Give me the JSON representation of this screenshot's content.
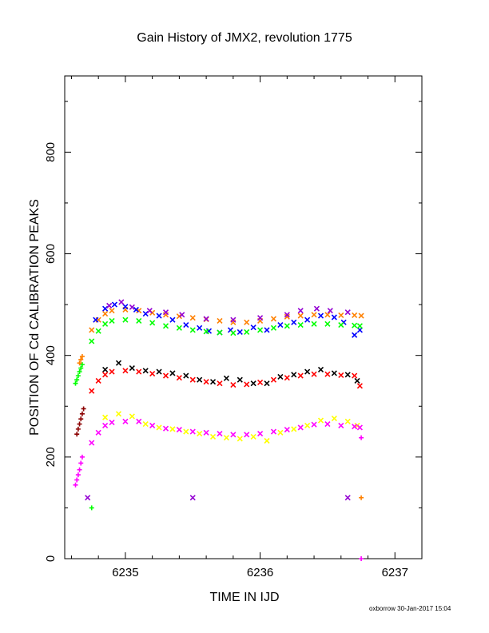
{
  "chart_data": {
    "type": "scatter",
    "title": "Gain History of JMX2, revolution 1775",
    "xlabel": "TIME IN IJD",
    "ylabel": "POSITION OF Cd CALIBRATION PEAKS",
    "xlim": [
      6234.55,
      6237.2
    ],
    "ylim": [
      0,
      950
    ],
    "xticks": [
      6235,
      6236,
      6237
    ],
    "yticks": [
      0,
      200,
      400,
      600,
      800
    ],
    "grid": false,
    "legend": "none",
    "series": [
      {
        "color": "#ff8000",
        "marker": "x",
        "points": [
          [
            6234.75,
            450
          ],
          [
            6234.8,
            470
          ],
          [
            6234.85,
            482
          ],
          [
            6234.9,
            488
          ],
          [
            6235.0,
            490
          ],
          [
            6235.1,
            488
          ],
          [
            6235.2,
            484
          ],
          [
            6235.3,
            480
          ],
          [
            6235.4,
            477
          ],
          [
            6235.5,
            474
          ],
          [
            6235.6,
            471
          ],
          [
            6235.7,
            468
          ],
          [
            6235.8,
            465
          ],
          [
            6235.9,
            465
          ],
          [
            6236.0,
            468
          ],
          [
            6236.1,
            472
          ],
          [
            6236.2,
            476
          ],
          [
            6236.3,
            478
          ],
          [
            6236.4,
            480
          ],
          [
            6236.5,
            480
          ],
          [
            6236.6,
            479
          ],
          [
            6236.7,
            479
          ],
          [
            6236.75,
            478
          ]
        ]
      },
      {
        "color": "#0000ff",
        "marker": "x",
        "points": [
          [
            6234.78,
            470
          ],
          [
            6234.85,
            492
          ],
          [
            6234.92,
            500
          ],
          [
            6235.0,
            496
          ],
          [
            6235.08,
            490
          ],
          [
            6235.15,
            482
          ],
          [
            6235.25,
            478
          ],
          [
            6235.35,
            470
          ],
          [
            6235.45,
            460
          ],
          [
            6235.55,
            454
          ],
          [
            6235.62,
            448
          ],
          [
            6235.7,
            445
          ],
          [
            6235.78,
            450
          ],
          [
            6235.85,
            446
          ],
          [
            6235.95,
            455
          ],
          [
            6236.05,
            450
          ],
          [
            6236.15,
            460
          ],
          [
            6236.25,
            465
          ],
          [
            6236.35,
            470
          ],
          [
            6236.45,
            478
          ],
          [
            6236.55,
            475
          ],
          [
            6236.62,
            465
          ],
          [
            6236.7,
            440
          ],
          [
            6236.74,
            450
          ]
        ]
      },
      {
        "color": "#9400d3",
        "marker": "x",
        "points": [
          [
            6234.88,
            498
          ],
          [
            6234.97,
            505
          ],
          [
            6235.05,
            495
          ],
          [
            6235.18,
            488
          ],
          [
            6235.3,
            485
          ],
          [
            6235.42,
            480
          ],
          [
            6235.6,
            472
          ],
          [
            6235.8,
            470
          ],
          [
            6236.0,
            474
          ],
          [
            6236.2,
            480
          ],
          [
            6236.3,
            488
          ],
          [
            6236.42,
            492
          ],
          [
            6236.52,
            488
          ],
          [
            6236.65,
            485
          ],
          [
            6234.72,
            120
          ],
          [
            6235.5,
            120
          ],
          [
            6236.65,
            120
          ]
        ]
      },
      {
        "color": "#00ff00",
        "marker": "x",
        "points": [
          [
            6234.75,
            428
          ],
          [
            6234.8,
            448
          ],
          [
            6234.85,
            462
          ],
          [
            6234.9,
            468
          ],
          [
            6235.0,
            470
          ],
          [
            6235.1,
            468
          ],
          [
            6235.2,
            464
          ],
          [
            6235.3,
            458
          ],
          [
            6235.4,
            454
          ],
          [
            6235.5,
            450
          ],
          [
            6235.6,
            447
          ],
          [
            6235.7,
            445
          ],
          [
            6235.8,
            444
          ],
          [
            6235.9,
            446
          ],
          [
            6236.0,
            450
          ],
          [
            6236.1,
            454
          ],
          [
            6236.2,
            458
          ],
          [
            6236.3,
            460
          ],
          [
            6236.4,
            462
          ],
          [
            6236.5,
            462
          ],
          [
            6236.6,
            460
          ],
          [
            6236.7,
            459
          ],
          [
            6236.74,
            458
          ]
        ]
      },
      {
        "color": "#00ff00",
        "marker": "+",
        "points": [
          [
            6234.63,
            345
          ],
          [
            6234.64,
            352
          ],
          [
            6234.65,
            360
          ],
          [
            6234.66,
            368
          ],
          [
            6234.67,
            375
          ],
          [
            6234.68,
            382
          ],
          [
            6234.75,
            100
          ]
        ]
      },
      {
        "color": "#ff8000",
        "marker": "+",
        "points": [
          [
            6234.66,
            385
          ],
          [
            6234.67,
            392
          ],
          [
            6234.68,
            398
          ],
          [
            6236.75,
            120
          ]
        ]
      },
      {
        "color": "#000000",
        "marker": "x",
        "points": [
          [
            6234.85,
            372
          ],
          [
            6234.95,
            385
          ],
          [
            6235.05,
            375
          ],
          [
            6235.15,
            370
          ],
          [
            6235.25,
            368
          ],
          [
            6235.35,
            365
          ],
          [
            6235.45,
            360
          ],
          [
            6235.55,
            352
          ],
          [
            6235.65,
            348
          ],
          [
            6235.75,
            355
          ],
          [
            6235.85,
            352
          ],
          [
            6235.95,
            345
          ],
          [
            6236.05,
            345
          ],
          [
            6236.15,
            358
          ],
          [
            6236.25,
            362
          ],
          [
            6236.35,
            368
          ],
          [
            6236.45,
            372
          ],
          [
            6236.55,
            365
          ],
          [
            6236.65,
            362
          ],
          [
            6236.72,
            350
          ]
        ]
      },
      {
        "color": "#ff0000",
        "marker": "x",
        "points": [
          [
            6234.75,
            330
          ],
          [
            6234.8,
            350
          ],
          [
            6234.85,
            362
          ],
          [
            6234.9,
            368
          ],
          [
            6235.0,
            370
          ],
          [
            6235.1,
            368
          ],
          [
            6235.2,
            364
          ],
          [
            6235.3,
            360
          ],
          [
            6235.4,
            356
          ],
          [
            6235.5,
            352
          ],
          [
            6235.6,
            348
          ],
          [
            6235.7,
            345
          ],
          [
            6235.8,
            342
          ],
          [
            6235.9,
            343
          ],
          [
            6236.0,
            347
          ],
          [
            6236.1,
            352
          ],
          [
            6236.2,
            356
          ],
          [
            6236.3,
            360
          ],
          [
            6236.4,
            363
          ],
          [
            6236.5,
            363
          ],
          [
            6236.6,
            361
          ],
          [
            6236.7,
            360
          ],
          [
            6236.74,
            340
          ]
        ]
      },
      {
        "color": "#8b0000",
        "marker": "+",
        "points": [
          [
            6234.64,
            245
          ],
          [
            6234.65,
            255
          ],
          [
            6234.66,
            265
          ],
          [
            6234.67,
            275
          ],
          [
            6234.68,
            285
          ],
          [
            6234.69,
            295
          ]
        ]
      },
      {
        "color": "#ffff00",
        "marker": "x",
        "points": [
          [
            6234.85,
            278
          ],
          [
            6234.95,
            285
          ],
          [
            6235.05,
            280
          ],
          [
            6235.15,
            265
          ],
          [
            6235.25,
            258
          ],
          [
            6235.35,
            255
          ],
          [
            6235.45,
            250
          ],
          [
            6235.55,
            246
          ],
          [
            6235.65,
            240
          ],
          [
            6235.75,
            238
          ],
          [
            6235.85,
            236
          ],
          [
            6235.95,
            240
          ],
          [
            6236.05,
            232
          ],
          [
            6236.15,
            248
          ],
          [
            6236.25,
            255
          ],
          [
            6236.35,
            262
          ],
          [
            6236.45,
            272
          ],
          [
            6236.55,
            276
          ],
          [
            6236.65,
            270
          ],
          [
            6236.72,
            262
          ]
        ]
      },
      {
        "color": "#ff00ff",
        "marker": "x",
        "points": [
          [
            6234.75,
            228
          ],
          [
            6234.8,
            248
          ],
          [
            6234.85,
            262
          ],
          [
            6234.9,
            268
          ],
          [
            6235.0,
            270
          ],
          [
            6235.1,
            270
          ],
          [
            6235.2,
            262
          ],
          [
            6235.3,
            256
          ],
          [
            6235.4,
            254
          ],
          [
            6235.5,
            250
          ],
          [
            6235.6,
            248
          ],
          [
            6235.7,
            246
          ],
          [
            6235.8,
            244
          ],
          [
            6235.9,
            244
          ],
          [
            6236.0,
            246
          ],
          [
            6236.1,
            250
          ],
          [
            6236.2,
            254
          ],
          [
            6236.3,
            258
          ],
          [
            6236.4,
            264
          ],
          [
            6236.5,
            265
          ],
          [
            6236.6,
            262
          ],
          [
            6236.7,
            260
          ],
          [
            6236.74,
            258
          ]
        ]
      },
      {
        "color": "#ff00ff",
        "marker": "+",
        "points": [
          [
            6234.63,
            145
          ],
          [
            6234.64,
            155
          ],
          [
            6234.65,
            165
          ],
          [
            6234.66,
            175
          ],
          [
            6234.67,
            188
          ],
          [
            6234.68,
            200
          ],
          [
            6236.75,
            238
          ],
          [
            6236.75,
            0
          ]
        ]
      }
    ]
  },
  "footer": "oxborrow 30-Jan-2017 15:04"
}
